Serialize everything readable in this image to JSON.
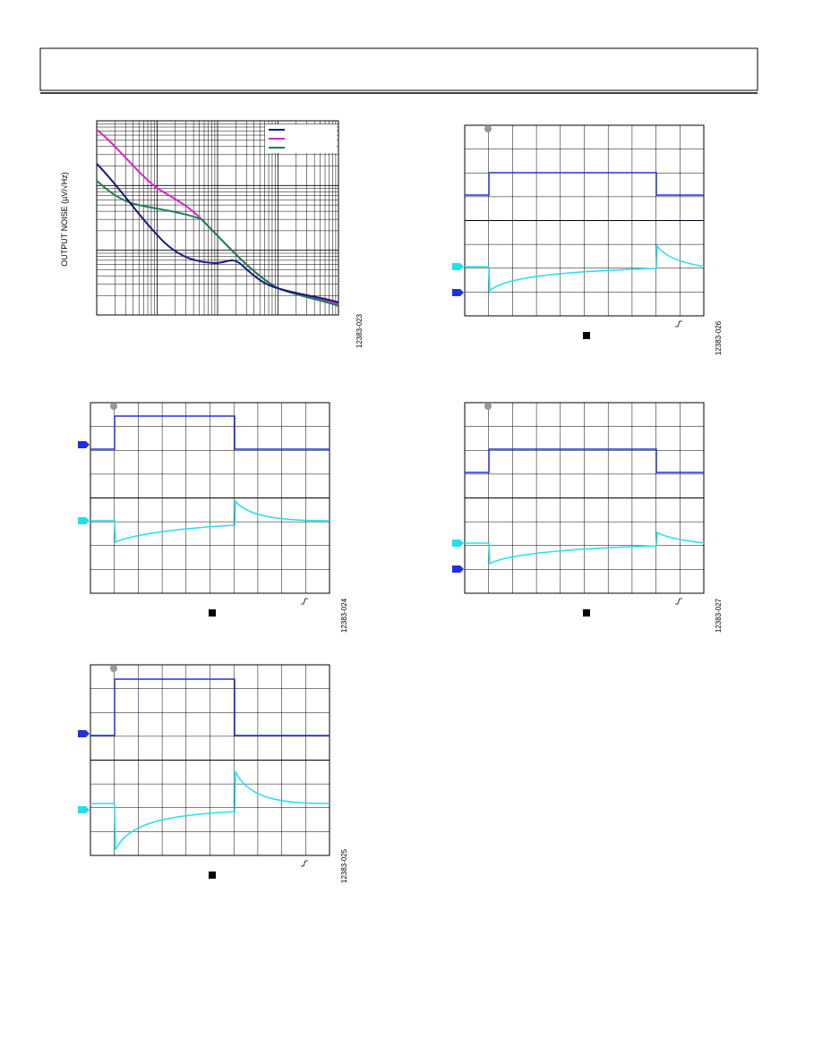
{
  "figures": [
    {
      "y_axis_label": "OUTPUT NOISE (µV/√Hz)",
      "figure_id": "12383-023"
    },
    {
      "figure_id": "12383-026"
    },
    {
      "figure_id": "12383-024"
    },
    {
      "figure_id": "12383-027"
    },
    {
      "figure_id": "12383-025"
    }
  ]
}
